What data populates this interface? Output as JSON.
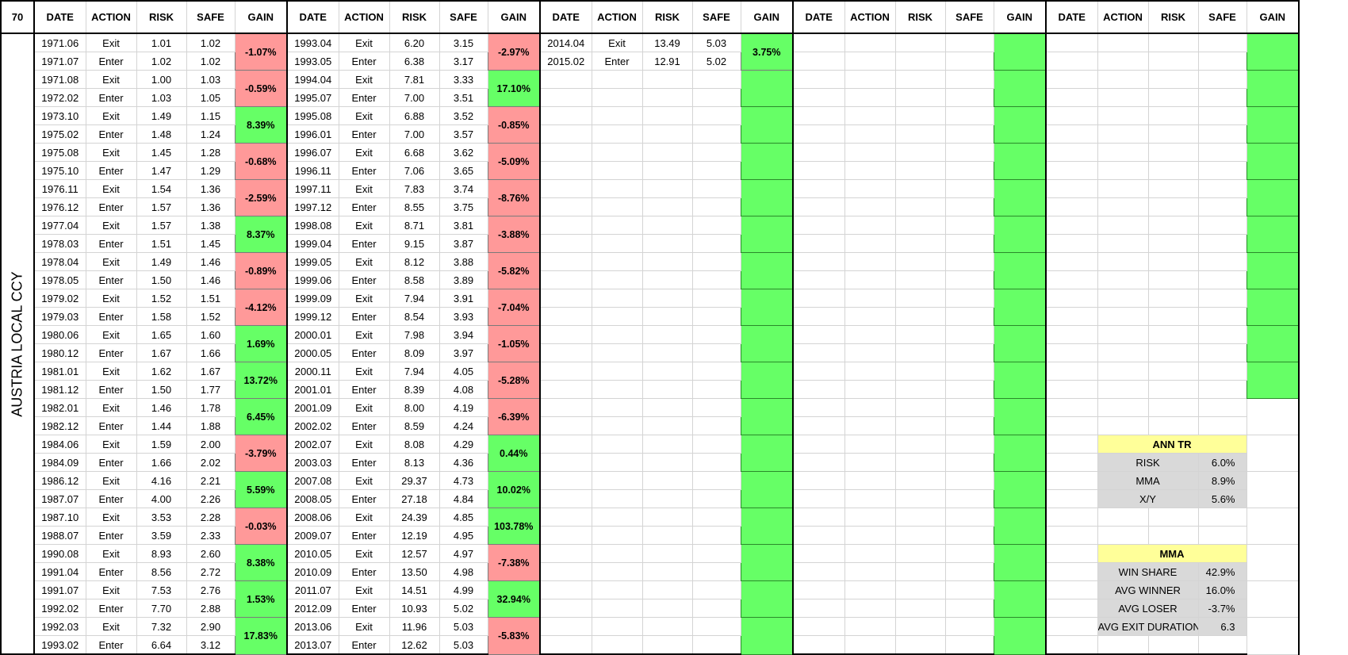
{
  "sheet": {
    "corner": "70",
    "side_label": "AUSTRIA LOCAL CCY",
    "headers": [
      "DATE",
      "ACTION",
      "RISK",
      "SAFE",
      "GAIN"
    ]
  },
  "blocks": [
    {
      "rows": [
        [
          "1971.06",
          "Exit",
          "1.01",
          "1.02"
        ],
        [
          "1971.07",
          "Enter",
          "1.02",
          "1.02"
        ],
        [
          "1971.08",
          "Exit",
          "1.00",
          "1.03"
        ],
        [
          "1972.02",
          "Enter",
          "1.03",
          "1.05"
        ],
        [
          "1973.10",
          "Exit",
          "1.49",
          "1.15"
        ],
        [
          "1975.02",
          "Enter",
          "1.48",
          "1.24"
        ],
        [
          "1975.08",
          "Exit",
          "1.45",
          "1.28"
        ],
        [
          "1975.10",
          "Enter",
          "1.47",
          "1.29"
        ],
        [
          "1976.11",
          "Exit",
          "1.54",
          "1.36"
        ],
        [
          "1976.12",
          "Enter",
          "1.57",
          "1.36"
        ],
        [
          "1977.04",
          "Exit",
          "1.57",
          "1.38"
        ],
        [
          "1978.03",
          "Enter",
          "1.51",
          "1.45"
        ],
        [
          "1978.04",
          "Exit",
          "1.49",
          "1.46"
        ],
        [
          "1978.05",
          "Enter",
          "1.50",
          "1.46"
        ],
        [
          "1979.02",
          "Exit",
          "1.52",
          "1.51"
        ],
        [
          "1979.03",
          "Enter",
          "1.58",
          "1.52"
        ],
        [
          "1980.06",
          "Exit",
          "1.65",
          "1.60"
        ],
        [
          "1980.12",
          "Enter",
          "1.67",
          "1.66"
        ],
        [
          "1981.01",
          "Exit",
          "1.62",
          "1.67"
        ],
        [
          "1981.12",
          "Enter",
          "1.50",
          "1.77"
        ],
        [
          "1982.01",
          "Exit",
          "1.46",
          "1.78"
        ],
        [
          "1982.12",
          "Enter",
          "1.44",
          "1.88"
        ],
        [
          "1984.06",
          "Exit",
          "1.59",
          "2.00"
        ],
        [
          "1984.09",
          "Enter",
          "1.66",
          "2.02"
        ],
        [
          "1986.12",
          "Exit",
          "4.16",
          "2.21"
        ],
        [
          "1987.07",
          "Enter",
          "4.00",
          "2.26"
        ],
        [
          "1987.10",
          "Exit",
          "3.53",
          "2.28"
        ],
        [
          "1988.07",
          "Enter",
          "3.59",
          "2.33"
        ],
        [
          "1990.08",
          "Exit",
          "8.93",
          "2.60"
        ],
        [
          "1991.04",
          "Enter",
          "8.56",
          "2.72"
        ],
        [
          "1991.07",
          "Exit",
          "7.53",
          "2.76"
        ],
        [
          "1992.02",
          "Enter",
          "7.70",
          "2.88"
        ],
        [
          "1992.03",
          "Exit",
          "7.32",
          "2.90"
        ],
        [
          "1993.02",
          "Enter",
          "6.64",
          "3.12"
        ]
      ],
      "gains": [
        "-1.07%",
        "-0.59%",
        "8.39%",
        "-0.68%",
        "-2.59%",
        "8.37%",
        "-0.89%",
        "-4.12%",
        "1.69%",
        "13.72%",
        "6.45%",
        "-3.79%",
        "5.59%",
        "-0.03%",
        "8.38%",
        "1.53%",
        "17.83%"
      ]
    },
    {
      "rows": [
        [
          "1993.04",
          "Exit",
          "6.20",
          "3.15"
        ],
        [
          "1993.05",
          "Enter",
          "6.38",
          "3.17"
        ],
        [
          "1994.04",
          "Exit",
          "7.81",
          "3.33"
        ],
        [
          "1995.07",
          "Enter",
          "7.00",
          "3.51"
        ],
        [
          "1995.08",
          "Exit",
          "6.88",
          "3.52"
        ],
        [
          "1996.01",
          "Enter",
          "7.00",
          "3.57"
        ],
        [
          "1996.07",
          "Exit",
          "6.68",
          "3.62"
        ],
        [
          "1996.11",
          "Enter",
          "7.06",
          "3.65"
        ],
        [
          "1997.11",
          "Exit",
          "7.83",
          "3.74"
        ],
        [
          "1997.12",
          "Enter",
          "8.55",
          "3.75"
        ],
        [
          "1998.08",
          "Exit",
          "8.71",
          "3.81"
        ],
        [
          "1999.04",
          "Enter",
          "9.15",
          "3.87"
        ],
        [
          "1999.05",
          "Exit",
          "8.12",
          "3.88"
        ],
        [
          "1999.06",
          "Enter",
          "8.58",
          "3.89"
        ],
        [
          "1999.09",
          "Exit",
          "7.94",
          "3.91"
        ],
        [
          "1999.12",
          "Enter",
          "8.54",
          "3.93"
        ],
        [
          "2000.01",
          "Exit",
          "7.98",
          "3.94"
        ],
        [
          "2000.05",
          "Enter",
          "8.09",
          "3.97"
        ],
        [
          "2000.11",
          "Exit",
          "7.94",
          "4.05"
        ],
        [
          "2001.01",
          "Enter",
          "8.39",
          "4.08"
        ],
        [
          "2001.09",
          "Exit",
          "8.00",
          "4.19"
        ],
        [
          "2002.02",
          "Enter",
          "8.59",
          "4.24"
        ],
        [
          "2002.07",
          "Exit",
          "8.08",
          "4.29"
        ],
        [
          "2003.03",
          "Enter",
          "8.13",
          "4.36"
        ],
        [
          "2007.08",
          "Exit",
          "29.37",
          "4.73"
        ],
        [
          "2008.05",
          "Enter",
          "27.18",
          "4.84"
        ],
        [
          "2008.06",
          "Exit",
          "24.39",
          "4.85"
        ],
        [
          "2009.07",
          "Enter",
          "12.19",
          "4.95"
        ],
        [
          "2010.05",
          "Exit",
          "12.57",
          "4.97"
        ],
        [
          "2010.09",
          "Enter",
          "13.50",
          "4.98"
        ],
        [
          "2011.07",
          "Exit",
          "14.51",
          "4.99"
        ],
        [
          "2012.09",
          "Enter",
          "10.93",
          "5.02"
        ],
        [
          "2013.06",
          "Exit",
          "11.96",
          "5.03"
        ],
        [
          "2013.07",
          "Enter",
          "12.62",
          "5.03"
        ]
      ],
      "gains": [
        "-2.97%",
        "17.10%",
        "-0.85%",
        "-5.09%",
        "-8.76%",
        "-3.88%",
        "-5.82%",
        "-7.04%",
        "-1.05%",
        "-5.28%",
        "-6.39%",
        "0.44%",
        "10.02%",
        "103.78%",
        "-7.38%",
        "32.94%",
        "-5.83%"
      ]
    },
    {
      "rows": [
        [
          "2014.04",
          "Exit",
          "13.49",
          "5.03"
        ],
        [
          "2015.02",
          "Enter",
          "12.91",
          "5.02"
        ]
      ],
      "gains": [
        "3.75%"
      ]
    }
  ],
  "summary": {
    "ann_tr": {
      "title": "ANN TR",
      "rows": [
        [
          "RISK",
          "6.0%"
        ],
        [
          "MMA",
          "8.9%"
        ],
        [
          "X/Y",
          "5.6%"
        ]
      ]
    },
    "mma": {
      "title": "MMA",
      "rows": [
        [
          "WIN SHARE",
          "42.9%"
        ],
        [
          "AVG WINNER",
          "16.0%"
        ],
        [
          "AVG LOSER",
          "-3.7%"
        ],
        [
          "AVG EXIT DURATION",
          "6.3"
        ]
      ]
    }
  },
  "colors": {
    "positive": "#66ff66",
    "negative": "#ff9999",
    "header_yellow": "#ffff99",
    "summary_grey": "#d9d9d9"
  }
}
